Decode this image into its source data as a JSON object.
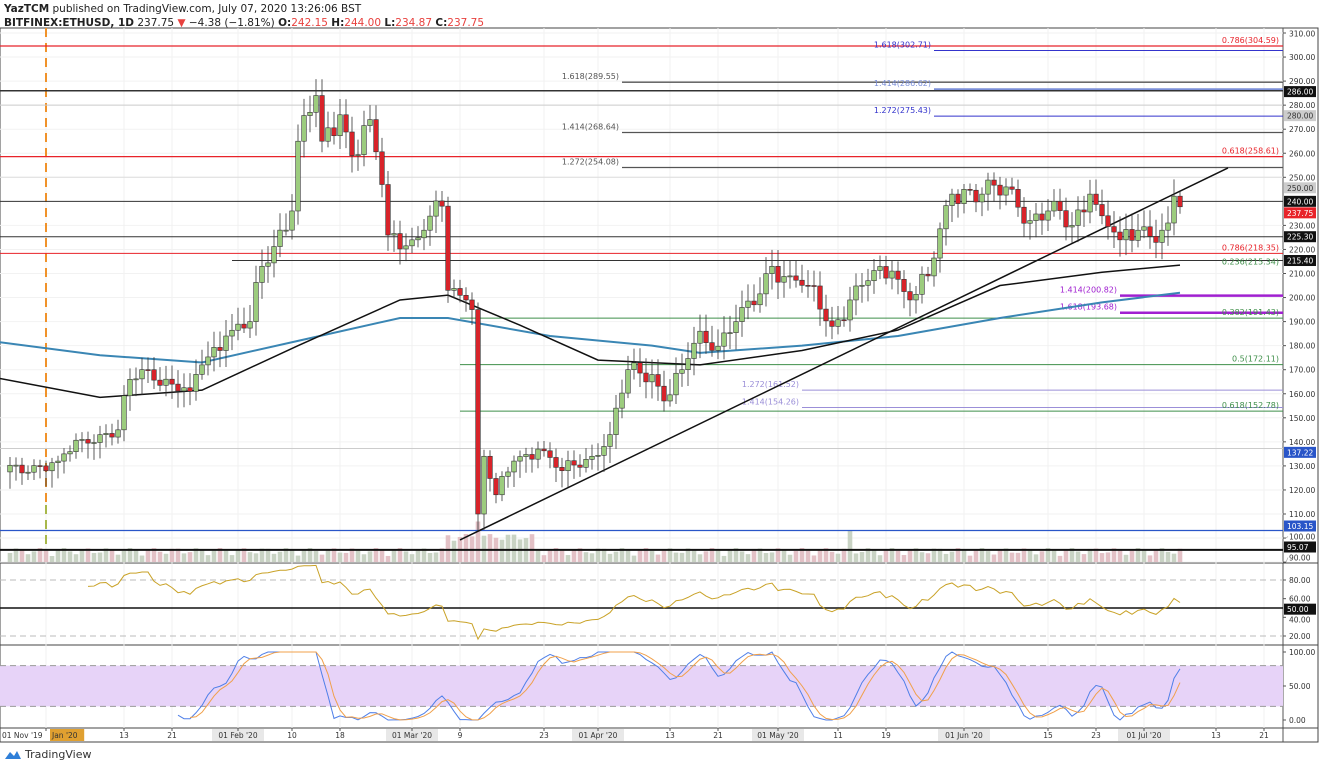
{
  "header": {
    "publisher": "YazTCM",
    "published_text": "published on TradingView.com, July 07, 2020 13:26:06 BST",
    "symbol": "BITFINEX:ETHUSD, 1D",
    "last": "237.75",
    "change": "−4.38 (−1.81%)",
    "o_label": "O:",
    "o": "242.15",
    "h_label": "H:",
    "h": "244.00",
    "l_label": "L:",
    "l": "234.87",
    "c_label": "C:",
    "c": "237.75"
  },
  "footer": {
    "brand": "TradingView"
  },
  "colors": {
    "up": "#9ccc7e",
    "down": "#d8232a",
    "ma100": "#111111",
    "ma200": "#3a86b4",
    "rsi": "#c9a227",
    "stoch_k": "#4f7fe8",
    "stoch_d": "#f0a04b",
    "stoch_band": "#e7d3f8"
  },
  "chart_data": {
    "type": "candlestick",
    "symbol": "BITFINEX:ETHUSD",
    "interval": "1D",
    "ylim": [
      90,
      310
    ],
    "price_ticks": [
      "310.00",
      "300.00",
      "290.00",
      "280.00",
      "270.00",
      "260.00",
      "250.00",
      "230.00",
      "220.00",
      "210.00",
      "200.00",
      "190.00",
      "180.00",
      "170.00",
      "160.00",
      "150.00",
      "140.00",
      "130.00",
      "120.00",
      "110.00",
      "100.00",
      "90.00"
    ],
    "price_badges": [
      {
        "text": "286.00",
        "value": 286.0,
        "color": "#111111"
      },
      {
        "text": "280.00",
        "value": 280.0,
        "color": "#cccccc"
      },
      {
        "text": "250.00",
        "value": 250.0,
        "color": "#cccccc"
      },
      {
        "text": "240.00",
        "value": 240.0,
        "color": "#111111"
      },
      {
        "text": "237.75",
        "value": 237.75,
        "color": "#e8232a"
      },
      {
        "text": "225.30",
        "value": 225.3,
        "color": "#111111"
      },
      {
        "text": "215.40",
        "value": 215.4,
        "color": "#111111"
      },
      {
        "text": "137.22",
        "value": 137.22,
        "color": "#2955c8"
      },
      {
        "text": "103.15",
        "value": 103.15,
        "color": "#2955c8"
      },
      {
        "text": "95.07",
        "value": 95.07,
        "color": "#111111"
      }
    ],
    "close_points": [
      [
        "2019-12-24",
        127.5
      ],
      [
        "2019-12-30",
        130
      ],
      [
        "2020-01-02",
        132
      ],
      [
        "2020-01-06",
        141
      ],
      [
        "2020-01-09",
        143
      ],
      [
        "2020-01-12",
        145
      ],
      [
        "2020-01-14",
        166
      ],
      [
        "2020-01-17",
        170
      ],
      [
        "2020-01-21",
        164
      ],
      [
        "2020-01-24",
        161
      ],
      [
        "2020-01-26",
        172
      ],
      [
        "2020-01-30",
        184
      ],
      [
        "2020-02-03",
        190
      ],
      [
        "2020-02-05",
        213
      ],
      [
        "2020-02-10",
        236
      ],
      [
        "2020-02-11",
        265
      ],
      [
        "2020-02-14",
        284
      ],
      [
        "2020-02-15",
        265
      ],
      [
        "2020-02-18",
        276
      ],
      [
        "2020-02-20",
        259
      ],
      [
        "2020-02-23",
        274
      ],
      [
        "2020-02-25",
        247
      ],
      [
        "2020-02-26",
        226
      ],
      [
        "2020-03-01",
        224
      ],
      [
        "2020-03-03",
        228
      ],
      [
        "2020-03-06",
        238
      ],
      [
        "2020-03-07",
        203
      ],
      [
        "2020-03-10",
        199
      ],
      [
        "2020-03-11",
        195
      ],
      [
        "2020-03-12",
        110
      ],
      [
        "2020-03-13",
        134
      ],
      [
        "2020-03-15",
        118
      ],
      [
        "2020-03-18",
        132
      ],
      [
        "2020-03-22",
        137
      ],
      [
        "2020-03-26",
        128
      ],
      [
        "2020-03-31",
        134
      ],
      [
        "2020-04-03",
        143
      ],
      [
        "2020-04-06",
        170
      ],
      [
        "2020-04-10",
        168
      ],
      [
        "2020-04-12",
        157
      ],
      [
        "2020-04-15",
        170
      ],
      [
        "2020-04-18",
        186
      ],
      [
        "2020-04-20",
        178
      ],
      [
        "2020-04-24",
        190
      ],
      [
        "2020-04-27",
        197
      ],
      [
        "2020-04-30",
        213
      ],
      [
        "2020-05-03",
        209
      ],
      [
        "2020-05-06",
        205
      ],
      [
        "2020-05-10",
        188
      ],
      [
        "2020-05-13",
        199
      ],
      [
        "2020-05-16",
        207
      ],
      [
        "2020-05-20",
        211
      ],
      [
        "2020-05-23",
        199
      ],
      [
        "2020-05-26",
        209
      ],
      [
        "2020-05-30",
        243
      ],
      [
        "2020-06-01",
        245
      ],
      [
        "2020-06-04",
        243
      ],
      [
        "2020-06-09",
        245
      ],
      [
        "2020-06-12",
        232
      ],
      [
        "2020-06-15",
        236
      ],
      [
        "2020-06-19",
        230
      ],
      [
        "2020-06-22",
        243
      ],
      [
        "2020-06-24",
        234
      ],
      [
        "2020-06-27",
        224
      ],
      [
        "2020-06-30",
        228
      ],
      [
        "2020-07-04",
        228
      ],
      [
        "2020-07-05",
        231
      ],
      [
        "2020-07-06",
        242.15
      ],
      [
        "2020-07-07",
        237.75
      ]
    ],
    "ma100": [
      [
        "2019-12-23",
        166.5
      ],
      [
        "2020-01-09",
        158.5
      ],
      [
        "2020-01-26",
        161.5
      ],
      [
        "2020-02-11",
        180
      ],
      [
        "2020-02-28",
        199
      ],
      [
        "2020-03-07",
        201
      ],
      [
        "2020-03-19",
        188.5
      ],
      [
        "2020-04-01",
        174
      ],
      [
        "2020-04-18",
        172
      ],
      [
        "2020-05-05",
        178
      ],
      [
        "2020-05-21",
        186.5
      ],
      [
        "2020-06-07",
        205
      ],
      [
        "2020-06-24",
        210.5
      ],
      [
        "2020-07-07",
        213.5
      ]
    ],
    "ma200": [
      [
        "2019-12-23",
        181.5
      ],
      [
        "2020-01-09",
        176
      ],
      [
        "2020-01-26",
        173
      ],
      [
        "2020-02-11",
        182
      ],
      [
        "2020-02-28",
        191.5
      ],
      [
        "2020-03-07",
        191.5
      ],
      [
        "2020-03-24",
        184
      ],
      [
        "2020-04-10",
        180
      ],
      [
        "2020-04-18",
        177
      ],
      [
        "2020-05-05",
        180
      ],
      [
        "2020-05-21",
        184
      ],
      [
        "2020-06-07",
        191.5
      ],
      [
        "2020-06-24",
        198
      ],
      [
        "2020-07-07",
        202
      ]
    ],
    "trendline": [
      [
        "2020-03-09",
        99.2
      ],
      [
        "2020-07-15",
        253.9
      ]
    ],
    "vertical_marker_date": "2019-12-31",
    "levels": [
      {
        "value": 304.59,
        "color": "#e8232a",
        "from": "full",
        "label": "0.786(304.59)",
        "label_side": "right",
        "width": 1.3
      },
      {
        "value": 302.71,
        "color": "#3333cc",
        "from": "2020-05-27",
        "label": "1.618(302.71)",
        "label_side": "left",
        "width": 1
      },
      {
        "value": 289.55,
        "color": "#555555",
        "from": "2020-04-05",
        "label": "1.618(289.55)",
        "label_side": "left",
        "width": 1.3
      },
      {
        "value": 286.62,
        "color": "#7b8fd8",
        "from": "2020-05-27",
        "label": "1.414(286.62)",
        "label_side": "left",
        "width": 2
      },
      {
        "value": 286.0,
        "color": "#333333",
        "from": "full",
        "label": "",
        "width": 1.5
      },
      {
        "value": 280.0,
        "color": "#cccccc",
        "from": "full",
        "label": "",
        "width": 1
      },
      {
        "value": 275.43,
        "color": "#3333cc",
        "from": "2020-05-27",
        "label": "1.272(275.43)",
        "label_side": "left",
        "width": 1
      },
      {
        "value": 268.64,
        "color": "#555555",
        "from": "2020-04-05",
        "label": "1.414(268.64)",
        "label_side": "left",
        "width": 1.3
      },
      {
        "value": 258.61,
        "color": "#e8232a",
        "from": "full",
        "label": "0.618(258.61)",
        "label_side": "right",
        "width": 1.3
      },
      {
        "value": 254.08,
        "color": "#555555",
        "from": "2020-04-05",
        "label": "1.272(254.08)",
        "label_side": "left",
        "width": 1.3
      },
      {
        "value": 250.0,
        "color": "#dddddd",
        "from": "full",
        "label": "",
        "width": 1
      },
      {
        "value": 240.0,
        "color": "#333333",
        "from": "full",
        "label": "",
        "width": 1
      },
      {
        "value": 225.3,
        "color": "#333333",
        "from": "full",
        "label": "",
        "width": 1
      },
      {
        "value": 218.35,
        "color": "#e8232a",
        "from": "full",
        "label": "0.786(218.35)",
        "label_side": "right",
        "width": 1
      },
      {
        "value": 215.4,
        "color": "#333333",
        "from": "2020-01-31",
        "label": "",
        "width": 1
      },
      {
        "value": 215.34,
        "color": "#3f8f4a",
        "from": "none",
        "label": "0.236(215.34)",
        "label_side": "right",
        "width": 1
      },
      {
        "value": 200.82,
        "color": "#a020d0",
        "from": "2020-06-27",
        "label": "1.414(200.82)",
        "label_side": "left",
        "width": 2.5
      },
      {
        "value": 193.68,
        "color": "#a020d0",
        "from": "2020-06-27",
        "label": "1.618(193.68)",
        "label_side": "left",
        "width": 2.5
      },
      {
        "value": 191.43,
        "color": "#3f8f4a",
        "from": "2020-03-09",
        "label": "0.382(191.43)",
        "label_side": "right",
        "width": 1
      },
      {
        "value": 172.11,
        "color": "#3f8f4a",
        "from": "2020-03-09",
        "label": "0.5(172.11)",
        "label_side": "right",
        "width": 1
      },
      {
        "value": 161.52,
        "color": "#9b8fd8",
        "from": "2020-05-05",
        "label": "1.272(161.52)",
        "label_side": "left",
        "width": 1
      },
      {
        "value": 154.26,
        "color": "#9b8fd8",
        "from": "2020-05-05",
        "label": "1.414(154.26)",
        "label_side": "left",
        "width": 1
      },
      {
        "value": 152.78,
        "color": "#3f8f4a",
        "from": "2020-03-09",
        "label": "0.618(152.78)",
        "label_side": "right",
        "width": 1
      },
      {
        "value": 137.22,
        "color": "#cccccc",
        "from": "full",
        "label": "",
        "width": 1
      },
      {
        "value": 103.15,
        "color": "#2955c8",
        "from": "full",
        "label": "",
        "width": 1.3
      },
      {
        "value": 95.07,
        "color": "#111111",
        "from": "full",
        "label": "",
        "width": 2
      }
    ],
    "rsi": {
      "period": 14,
      "ticks": [
        "80.00",
        "60.00",
        "40.00",
        "20.00"
      ],
      "badge": "50.00",
      "levels": [
        80,
        50,
        20
      ]
    },
    "stoch_rsi": {
      "ticks": [
        "100.00",
        "50.00",
        "0.00"
      ],
      "band": [
        80,
        20
      ]
    },
    "time_axis": [
      {
        "label": "01 Nov '19",
        "date": null
      },
      {
        "label": "Jan '20",
        "date": "2019-12-31",
        "highlight": true
      },
      {
        "label": "13",
        "date": "2020-01-13"
      },
      {
        "label": "21",
        "date": "2020-01-21"
      },
      {
        "label": "01 Feb '20",
        "date": "2020-02-01"
      },
      {
        "label": "10",
        "date": "2020-02-10"
      },
      {
        "label": "18",
        "date": "2020-02-18"
      },
      {
        "label": "01 Mar '20",
        "date": "2020-03-01"
      },
      {
        "label": "9",
        "date": "2020-03-09"
      },
      {
        "label": "23",
        "date": "2020-03-23"
      },
      {
        "label": "01 Apr '20",
        "date": "2020-04-01"
      },
      {
        "label": "13",
        "date": "2020-04-13"
      },
      {
        "label": "21",
        "date": "2020-04-21"
      },
      {
        "label": "01 May '20",
        "date": "2020-05-01"
      },
      {
        "label": "11",
        "date": "2020-05-11"
      },
      {
        "label": "19",
        "date": "2020-05-19"
      },
      {
        "label": "01 Jun '20",
        "date": "2020-06-01"
      },
      {
        "label": "15",
        "date": "2020-06-15"
      },
      {
        "label": "23",
        "date": "2020-06-23"
      },
      {
        "label": "01 Jul '20",
        "date": "2020-07-01"
      },
      {
        "label": "13",
        "date": "2020-07-13"
      },
      {
        "label": "21",
        "date": "2020-07-21"
      }
    ]
  }
}
